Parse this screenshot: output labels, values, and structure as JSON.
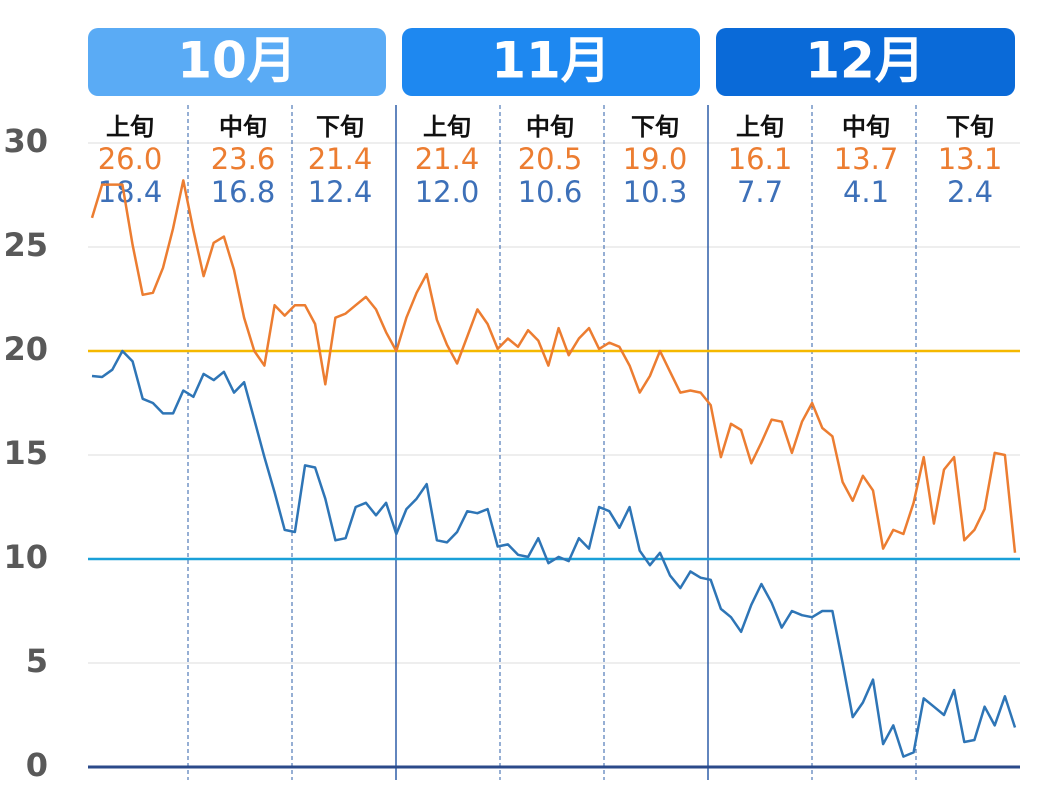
{
  "chart_data": {
    "type": "line",
    "months": [
      "10月",
      "11月",
      "12月"
    ],
    "period_names": [
      "上旬",
      "中旬",
      "下旬",
      "上旬",
      "中旬",
      "下旬",
      "上旬",
      "中旬",
      "下旬"
    ],
    "period_max": [
      "26.0",
      "23.6",
      "21.4",
      "21.4",
      "20.5",
      "19.0",
      "16.1",
      "13.7",
      "13.1"
    ],
    "period_min": [
      "18.4",
      "16.8",
      "12.4",
      "12.0",
      "10.6",
      "10.3",
      "7.7",
      "4.1",
      "2.4"
    ],
    "categories": [
      null,
      null,
      null,
      null,
      null,
      null,
      null,
      null,
      null,
      null,
      null,
      null,
      null,
      null,
      null,
      null,
      null,
      null,
      null,
      null,
      null,
      null,
      null,
      null,
      null,
      null,
      null,
      null,
      null,
      null,
      null,
      null,
      null,
      null,
      null,
      null,
      null,
      null,
      null,
      null,
      null,
      null,
      null,
      null,
      null,
      null,
      null,
      null,
      null,
      null,
      null,
      null,
      null,
      null,
      null,
      null,
      null,
      null,
      null,
      null,
      null,
      null,
      null,
      null,
      null,
      null,
      null,
      null,
      null,
      null,
      null,
      null,
      null,
      null,
      null,
      null,
      null,
      null,
      null,
      null,
      null,
      null,
      null,
      null,
      null,
      null,
      null,
      null,
      null,
      null,
      null,
      null
    ],
    "series": [
      {
        "color": "#ec7d31",
        "values": [
          26.4,
          28.0,
          28.0,
          28.0,
          25.1,
          22.7,
          22.8,
          24.0,
          25.9,
          28.2,
          25.8,
          23.6,
          25.2,
          25.5,
          23.9,
          21.6,
          20.0,
          19.3,
          22.2,
          21.7,
          22.2,
          22.2,
          21.3,
          18.4,
          21.6,
          21.8,
          22.2,
          22.6,
          22.0,
          20.9,
          20.0,
          21.6,
          22.8,
          23.7,
          21.5,
          20.3,
          19.4,
          20.7,
          22.0,
          21.3,
          20.1,
          20.6,
          20.2,
          21.0,
          20.5,
          19.3,
          21.1,
          19.8,
          20.6,
          21.1,
          20.1,
          20.4,
          20.2,
          19.3,
          18.0,
          18.8,
          20.0,
          19.0,
          18.0,
          18.1,
          18.0,
          17.4,
          14.9,
          16.5,
          16.2,
          14.6,
          15.6,
          16.7,
          16.6,
          15.1,
          16.6,
          17.5,
          16.3,
          15.9,
          13.7,
          12.8,
          14.0,
          13.3,
          10.5,
          11.4,
          11.2,
          12.7,
          14.9,
          11.7,
          14.3,
          14.9,
          10.9,
          11.4,
          12.4,
          15.1,
          15.0,
          10.3
        ]
      },
      {
        "color": "#2e75b6",
        "values": [
          18.8,
          18.75,
          19.1,
          20.0,
          19.5,
          17.7,
          17.5,
          17.0,
          17.0,
          18.1,
          17.8,
          18.9,
          18.6,
          19.0,
          18.0,
          18.5,
          16.7,
          14.9,
          13.2,
          11.4,
          11.3,
          14.5,
          14.4,
          12.9,
          10.9,
          11.0,
          12.5,
          12.7,
          12.1,
          12.7,
          11.2,
          12.4,
          12.9,
          13.6,
          10.9,
          10.8,
          11.3,
          12.3,
          12.2,
          12.4,
          10.6,
          10.7,
          10.2,
          10.1,
          11.0,
          9.8,
          10.1,
          9.9,
          11.0,
          10.5,
          12.5,
          12.3,
          11.5,
          12.5,
          10.4,
          9.7,
          10.3,
          9.2,
          8.6,
          9.4,
          9.1,
          9.0,
          7.6,
          7.2,
          6.5,
          7.8,
          8.8,
          7.9,
          6.7,
          7.5,
          7.3,
          7.2,
          7.5,
          7.5,
          5.0,
          2.4,
          3.1,
          4.2,
          1.1,
          2.0,
          0.5,
          0.7,
          3.3,
          2.9,
          2.5,
          3.7,
          1.2,
          1.3,
          2.9,
          2.0,
          3.4,
          1.9
        ]
      }
    ],
    "reference_lines": [
      {
        "value": 20,
        "color": "#f5b800"
      },
      {
        "value": 10,
        "color": "#1aa0d8"
      }
    ],
    "ylim": [
      0,
      30
    ],
    "yticks": [
      0,
      5,
      10,
      15,
      20,
      25,
      30
    ],
    "grid": true
  }
}
